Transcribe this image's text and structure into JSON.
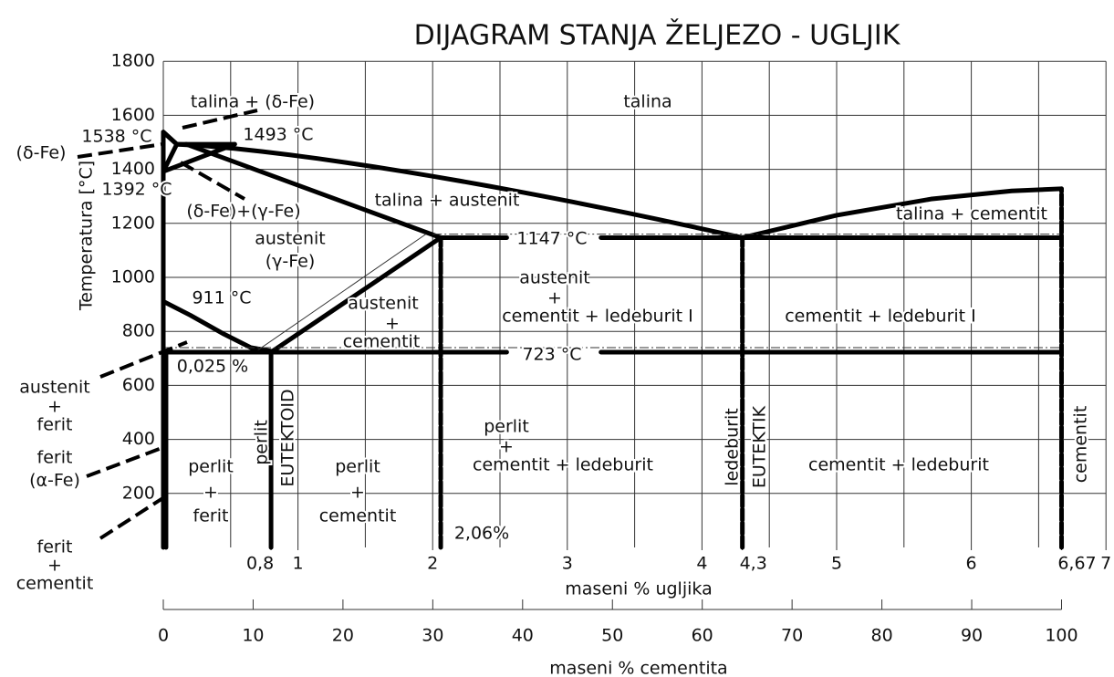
{
  "title": "DIJAGRAM STANJA ŽELJEZO - UGLJIK",
  "y_axis": {
    "label": "Temperatura  [°C]",
    "ticks": [
      200,
      400,
      600,
      800,
      1000,
      1200,
      1400,
      1600,
      1800
    ]
  },
  "carbon_axis": {
    "label": "maseni % ugljika",
    "ticks": [
      {
        "value": 0.8,
        "label": "0,8"
      },
      1,
      2,
      3,
      4,
      {
        "value": 4.3,
        "label": "4,3"
      },
      5,
      6,
      {
        "value": 6.67,
        "label": "6,67"
      },
      7
    ]
  },
  "cementite_axis": {
    "label": "maseni % cementita",
    "ticks": [
      0,
      10,
      20,
      30,
      40,
      50,
      60,
      70,
      80,
      90,
      100
    ]
  },
  "labels": [
    "talina",
    "talina + (δ-Fe)",
    "1538 °C",
    "1493 °C",
    "(δ-Fe)",
    "1392 °C",
    "(δ-Fe)+(γ-Fe)",
    "talina + austenit",
    "talina + cementit",
    "1147 °C",
    "austenit",
    "(γ-Fe)",
    "austenit",
    "+",
    "cementit + ledeburit I",
    "cementit + ledeburit I",
    "911 °C",
    "austenit",
    "+",
    "cementit",
    "723 °C",
    "0,025 %",
    "austenit",
    "+",
    "ferit",
    "perlit",
    "+",
    "cementit + ledeburit",
    "cementit + ledeburit",
    "perlit",
    "+",
    "ferit",
    "perlit",
    "+",
    "cementit",
    "ferit",
    "(α-Fe)",
    "ferit",
    "+",
    "cementit",
    "2,06%",
    "perlit",
    "EUTEKTOID",
    "ledeburit",
    "EUTEKTIK",
    "cementit"
  ]
}
